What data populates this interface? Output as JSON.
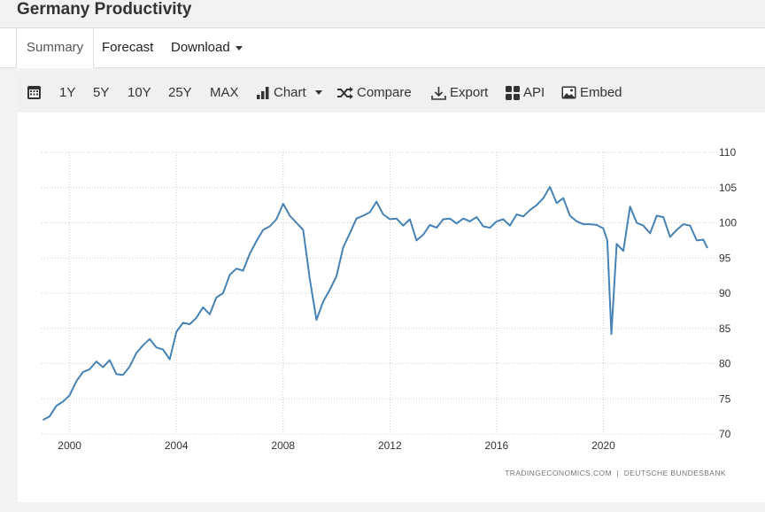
{
  "header": {
    "title": "Germany Productivity"
  },
  "tabs": [
    {
      "label": "Summary"
    },
    {
      "label": "Forecast"
    },
    {
      "label": "Download"
    }
  ],
  "toolbar": {
    "ranges": [
      "1Y",
      "5Y",
      "10Y",
      "25Y",
      "MAX"
    ],
    "chart": "Chart",
    "compare": "Compare",
    "export": "Export",
    "api": "API",
    "embed": "Embed"
  },
  "chart_data": {
    "type": "line",
    "title": "Germany Productivity",
    "xlabel": "",
    "ylabel": "",
    "ylim": [
      70,
      110
    ],
    "yticks": [
      "70",
      "75",
      "80",
      "85",
      "90",
      "95",
      "100",
      "105",
      "110"
    ],
    "xticks": [
      "2000",
      "2004",
      "2008",
      "2012",
      "2016",
      "2020"
    ],
    "xlim": [
      1998.95,
      2024.2
    ],
    "grid": true,
    "source": "TRADINGECONOMICS.COM  |  DEUTSCHE BUNDESBANK",
    "line_color": "#4682b4",
    "series": [
      {
        "name": "Productivity",
        "x": [
          1999.0,
          1999.25,
          1999.5,
          1999.75,
          2000.0,
          2000.25,
          2000.5,
          2000.75,
          2001.0,
          2001.25,
          2001.5,
          2001.75,
          2002.0,
          2002.25,
          2002.5,
          2002.75,
          2003.0,
          2003.25,
          2003.5,
          2003.75,
          2004.0,
          2004.25,
          2004.5,
          2004.75,
          2005.0,
          2005.25,
          2005.5,
          2005.75,
          2006.0,
          2006.25,
          2006.5,
          2006.75,
          2007.0,
          2007.25,
          2007.5,
          2007.75,
          2008.0,
          2008.25,
          2008.5,
          2008.75,
          2009.0,
          2009.25,
          2009.5,
          2009.75,
          2010.0,
          2010.25,
          2010.5,
          2010.75,
          2011.0,
          2011.25,
          2011.5,
          2011.75,
          2012.0,
          2012.25,
          2012.5,
          2012.75,
          2013.0,
          2013.25,
          2013.5,
          2013.75,
          2014.0,
          2014.25,
          2014.5,
          2014.75,
          2015.0,
          2015.25,
          2015.5,
          2015.75,
          2016.0,
          2016.25,
          2016.5,
          2016.75,
          2017.0,
          2017.25,
          2017.5,
          2017.75,
          2018.0,
          2018.25,
          2018.5,
          2018.75,
          2019.0,
          2019.25,
          2019.5,
          2019.75,
          2020.0,
          2020.15,
          2020.3,
          2020.5,
          2020.75,
          2021.0,
          2021.25,
          2021.5,
          2021.75,
          2022.0,
          2022.25,
          2022.5,
          2022.75,
          2023.0,
          2023.25,
          2023.5,
          2023.75,
          2023.9
        ],
        "values": [
          72,
          72.5,
          74,
          74.6,
          75.5,
          77.5,
          78.8,
          79.2,
          80.3,
          79.5,
          80.5,
          78.5,
          78.4,
          79.6,
          81.5,
          82.6,
          83.5,
          82.3,
          82,
          80.6,
          84.5,
          85.8,
          85.6,
          86.5,
          88,
          87,
          89.4,
          90,
          92.6,
          93.5,
          93.2,
          95.6,
          97.4,
          99,
          99.5,
          100.5,
          102.7,
          101,
          100,
          99,
          92,
          86.2,
          88.8,
          90.5,
          92.4,
          96.5,
          98.5,
          100.6,
          101,
          101.5,
          103,
          101.2,
          100.5,
          100.6,
          99.6,
          100.5,
          97.5,
          98.3,
          99.7,
          99.3,
          100.5,
          100.6,
          99.9,
          100.6,
          100.2,
          100.8,
          99.5,
          99.3,
          100.2,
          100.5,
          99.6,
          101.2,
          100.9,
          101.8,
          102.5,
          103.5,
          105.1,
          102.8,
          103.5,
          101,
          100.2,
          99.8,
          99.8,
          99.7,
          99.2,
          97.5,
          84.2,
          97,
          96,
          102.3,
          100,
          99.6,
          98.5,
          101,
          100.8,
          98,
          99,
          99.8,
          99.6,
          97.5,
          97.6,
          96.4
        ]
      }
    ]
  }
}
